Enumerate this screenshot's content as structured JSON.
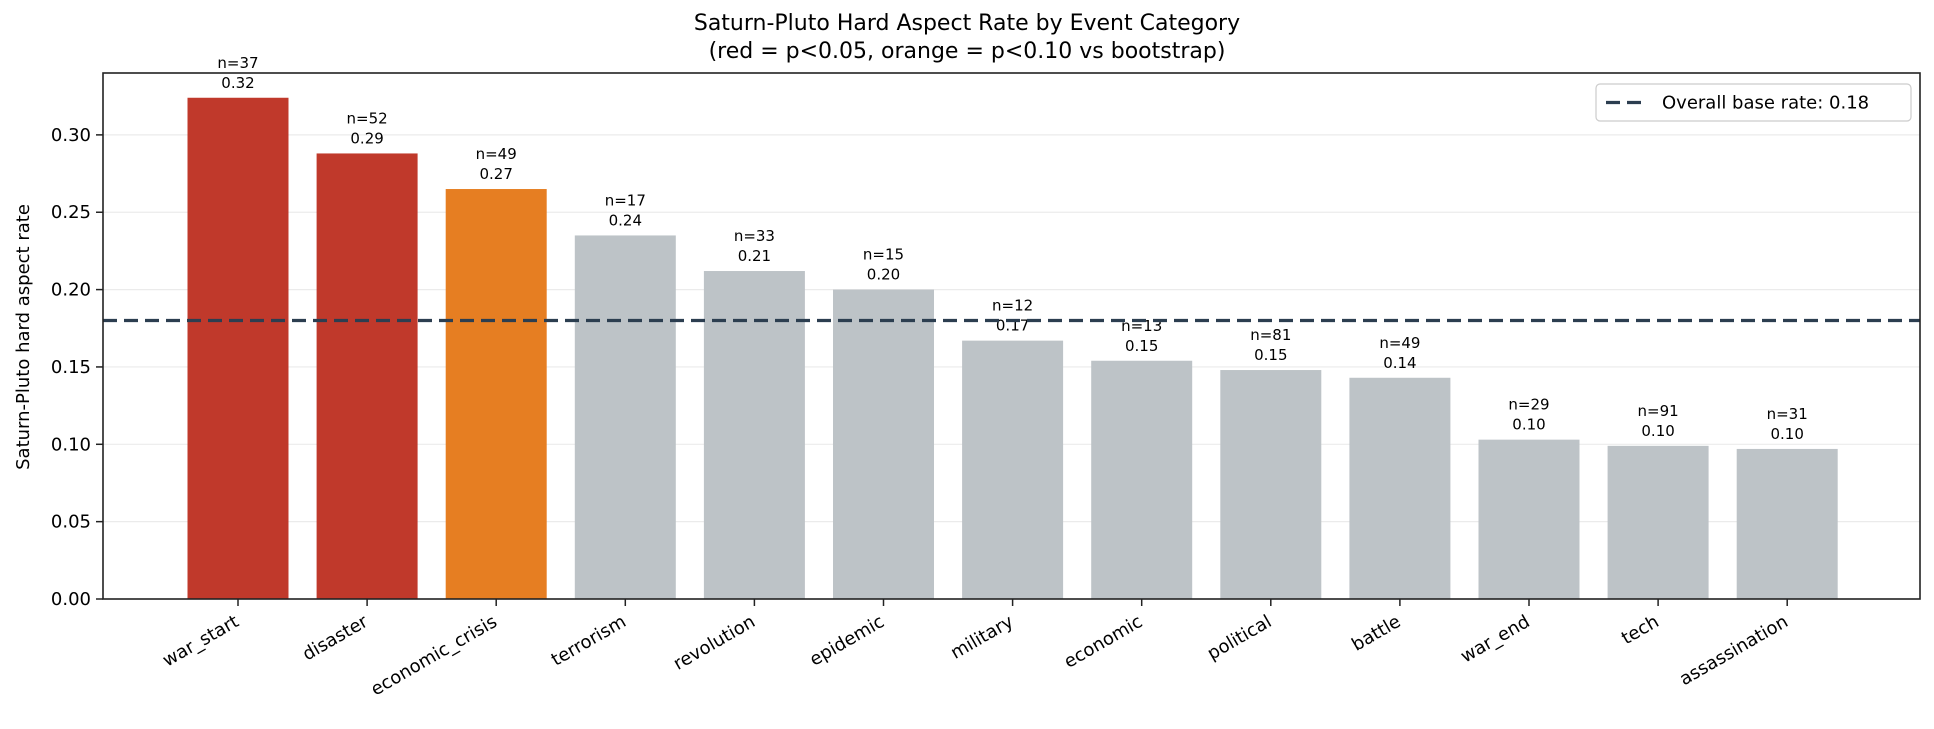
{
  "title_line1": "Saturn-Pluto Hard Aspect Rate by Event Category",
  "title_line2": "(red = p<0.05, orange = p<0.10 vs bootstrap)",
  "legend": {
    "label": "Overall base rate: 0.18"
  },
  "colors": {
    "significant": "#c0392b",
    "marginal": "#e67e22",
    "neutral": "#bdc3c7",
    "baseline": "#2c3e50"
  },
  "chart_data": {
    "type": "bar",
    "title": "Saturn-Pluto Hard Aspect Rate by Event Category\n(red = p<0.05, orange = p<0.10 vs bootstrap)",
    "xlabel": "",
    "ylabel": "Saturn-Pluto hard aspect rate",
    "ylim": [
      0,
      0.34
    ],
    "yticks": [
      "0.00",
      "0.05",
      "0.10",
      "0.15",
      "0.20",
      "0.25",
      "0.30"
    ],
    "grid": "y",
    "legend_position": "upper right",
    "categories": [
      "war_start",
      "disaster",
      "economic_crisis",
      "terrorism",
      "revolution",
      "epidemic",
      "military",
      "economic",
      "political",
      "battle",
      "war_end",
      "tech",
      "assassination"
    ],
    "values": [
      0.324,
      0.288,
      0.265,
      0.235,
      0.212,
      0.2,
      0.167,
      0.154,
      0.148,
      0.143,
      0.103,
      0.099,
      0.097
    ],
    "value_labels": [
      "0.32",
      "0.29",
      "0.27",
      "0.24",
      "0.21",
      "0.20",
      "0.17",
      "0.15",
      "0.15",
      "0.14",
      "0.10",
      "0.10",
      "0.10"
    ],
    "n": [
      37,
      52,
      49,
      17,
      33,
      15,
      12,
      13,
      81,
      49,
      29,
      91,
      31
    ],
    "significance": [
      "p<0.05",
      "p<0.05",
      "p<0.10",
      "ns",
      "ns",
      "ns",
      "ns",
      "ns",
      "ns",
      "ns",
      "ns",
      "ns",
      "ns"
    ],
    "reference_line": {
      "value": 0.18,
      "label": "Overall base rate: 0.18",
      "style": "dashed"
    }
  }
}
